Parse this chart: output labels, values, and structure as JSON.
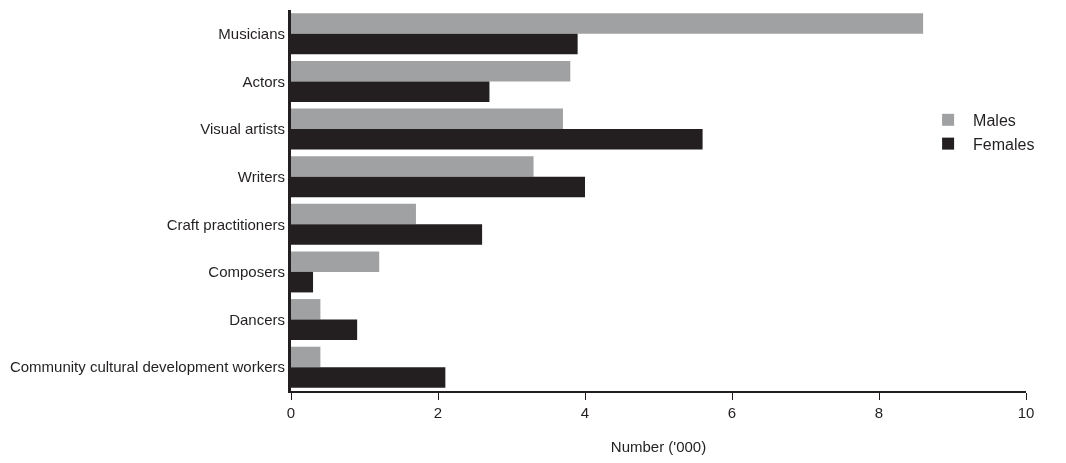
{
  "chart_data": {
    "type": "bar",
    "orientation": "horizontal",
    "xlabel": "Number ('000)",
    "categories": [
      "Musicians",
      "Actors",
      "Visual artists",
      "Writers",
      "Craft practitioners",
      "Composers",
      "Dancers",
      "Community cultural development workers"
    ],
    "series": [
      {
        "name": "Males",
        "color": "#a0a1a3",
        "values": [
          8.6,
          3.8,
          3.7,
          3.3,
          1.7,
          1.2,
          0.4,
          0.4
        ]
      },
      {
        "name": "Females",
        "color": "#231f20",
        "values": [
          3.9,
          2.7,
          5.6,
          4.0,
          2.6,
          0.3,
          0.9,
          2.1
        ]
      }
    ],
    "xlim": [
      0,
      10
    ],
    "xticks": [
      0,
      2,
      4,
      6,
      8,
      10
    ],
    "grid": false,
    "legend": "right"
  }
}
